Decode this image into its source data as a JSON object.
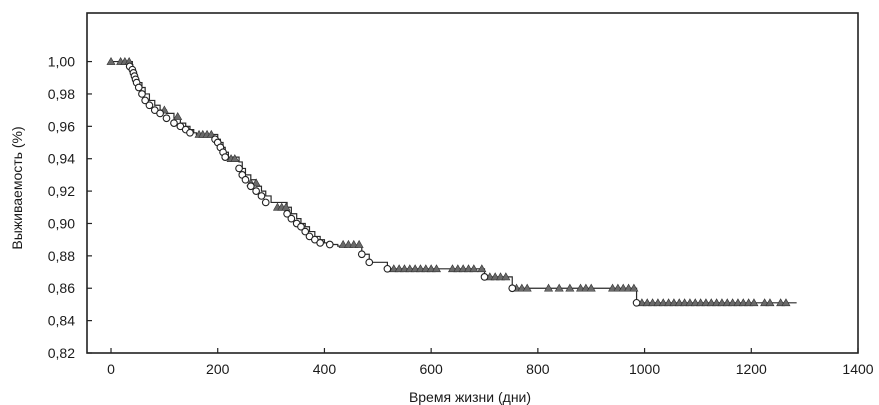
{
  "chart_data": {
    "type": "line",
    "title": "",
    "xlabel": "Время жизни (дни)",
    "ylabel": "Выживаемость (%)",
    "xlim": [
      -45,
      1400
    ],
    "ylim": [
      0.82,
      1.03
    ],
    "xticks": [
      0,
      200,
      400,
      600,
      800,
      1000,
      1200,
      1400
    ],
    "xtick_labels": [
      "0",
      "200",
      "400",
      "600",
      "800",
      "1000",
      "1200",
      "1400"
    ],
    "yticks": [
      0.82,
      0.84,
      0.86,
      0.88,
      0.9,
      0.92,
      0.94,
      0.96,
      0.98,
      1.0
    ],
    "ytick_labels": [
      "0,82",
      "0,84",
      "0,86",
      "0,88",
      "0,90",
      "0,92",
      "0,94",
      "0,96",
      "0,98",
      "1,00"
    ],
    "grid": false,
    "colors": {
      "censored_marker": "#6a6a6a",
      "event_marker": "#ffffff",
      "line": "#2a2a2a"
    },
    "series": [
      {
        "marker": "step",
        "x": [
          0,
          35,
          40,
          42,
          44,
          46,
          48,
          52,
          58,
          64,
          72,
          82,
          92,
          104,
          118,
          130,
          140,
          148,
          155,
          160,
          195,
          200,
          205,
          210,
          214,
          220,
          240,
          246,
          252,
          262,
          272,
          282,
          290,
          300,
          330,
          338,
          348,
          356,
          364,
          372,
          382,
          392,
          400,
          410,
          425,
          470,
          484,
          518,
          700,
          752,
          985,
          1285
        ],
        "y": [
          1.0,
          1.0,
          0.997,
          0.995,
          0.993,
          0.991,
          0.989,
          0.987,
          0.984,
          0.98,
          0.976,
          0.973,
          0.97,
          0.968,
          0.965,
          0.962,
          0.96,
          0.958,
          0.956,
          0.955,
          0.955,
          0.952,
          0.95,
          0.947,
          0.944,
          0.941,
          0.938,
          0.934,
          0.93,
          0.927,
          0.923,
          0.92,
          0.917,
          0.913,
          0.91,
          0.906,
          0.903,
          0.9,
          0.898,
          0.895,
          0.892,
          0.89,
          0.888,
          0.887,
          0.886,
          0.881,
          0.876,
          0.872,
          0.867,
          0.86,
          0.851,
          0.851
        ]
      },
      {
        "marker": "open-circle",
        "x": [
          35,
          40,
          42,
          44,
          46,
          48,
          52,
          58,
          64,
          72,
          82,
          92,
          104,
          118,
          130,
          140,
          148,
          195,
          200,
          205,
          210,
          214,
          240,
          246,
          252,
          262,
          272,
          282,
          290,
          330,
          338,
          348,
          356,
          364,
          372,
          382,
          392,
          410,
          470,
          484,
          518,
          700,
          752,
          985
        ],
        "y": [
          0.997,
          0.995,
          0.993,
          0.991,
          0.989,
          0.987,
          0.984,
          0.98,
          0.976,
          0.973,
          0.97,
          0.968,
          0.965,
          0.962,
          0.96,
          0.958,
          0.956,
          0.952,
          0.95,
          0.947,
          0.944,
          0.941,
          0.934,
          0.93,
          0.927,
          0.923,
          0.92,
          0.917,
          0.913,
          0.906,
          0.903,
          0.9,
          0.898,
          0.895,
          0.892,
          0.89,
          0.888,
          0.887,
          0.881,
          0.876,
          0.872,
          0.867,
          0.86,
          0.851
        ]
      },
      {
        "marker": "filled-triangle",
        "x": [
          0,
          18,
          26,
          34,
          100,
          125,
          165,
          172,
          180,
          188,
          225,
          232,
          262,
          272,
          312,
          320,
          328,
          435,
          445,
          455,
          465,
          530,
          540,
          550,
          560,
          570,
          580,
          590,
          600,
          610,
          640,
          650,
          660,
          670,
          680,
          695,
          710,
          720,
          730,
          740,
          760,
          770,
          780,
          820,
          840,
          860,
          880,
          890,
          900,
          940,
          950,
          960,
          970,
          980,
          995,
          1005,
          1015,
          1025,
          1035,
          1045,
          1055,
          1065,
          1075,
          1085,
          1095,
          1105,
          1115,
          1125,
          1135,
          1145,
          1155,
          1165,
          1175,
          1185,
          1195,
          1205,
          1225,
          1235,
          1255,
          1265
        ],
        "y": [
          1.0,
          1.0,
          1.0,
          1.0,
          0.97,
          0.966,
          0.955,
          0.955,
          0.955,
          0.955,
          0.94,
          0.94,
          0.925,
          0.925,
          0.91,
          0.91,
          0.91,
          0.887,
          0.887,
          0.887,
          0.887,
          0.872,
          0.872,
          0.872,
          0.872,
          0.872,
          0.872,
          0.872,
          0.872,
          0.872,
          0.872,
          0.872,
          0.872,
          0.872,
          0.872,
          0.872,
          0.867,
          0.867,
          0.867,
          0.867,
          0.86,
          0.86,
          0.86,
          0.86,
          0.86,
          0.86,
          0.86,
          0.86,
          0.86,
          0.86,
          0.86,
          0.86,
          0.86,
          0.86,
          0.851,
          0.851,
          0.851,
          0.851,
          0.851,
          0.851,
          0.851,
          0.851,
          0.851,
          0.851,
          0.851,
          0.851,
          0.851,
          0.851,
          0.851,
          0.851,
          0.851,
          0.851,
          0.851,
          0.851,
          0.851,
          0.851,
          0.851,
          0.851,
          0.851,
          0.851
        ]
      }
    ]
  }
}
